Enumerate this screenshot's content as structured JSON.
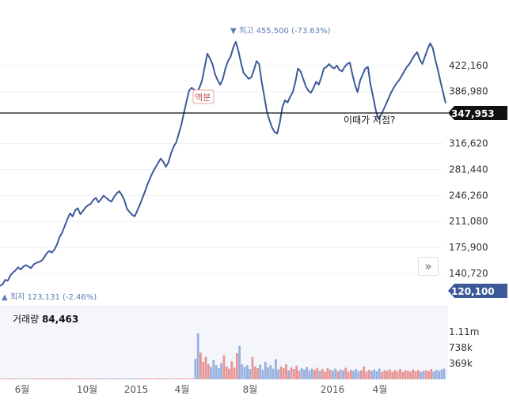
{
  "chart_data": {
    "type": "line",
    "y_ticks": [
      "422,160",
      "386,980",
      "316,620",
      "281,440",
      "246,260",
      "211,080",
      "175,900",
      "140,720"
    ],
    "x_ticks": [
      "6월",
      "10월",
      "2015",
      "4월",
      "8월",
      "2016",
      "4월"
    ],
    "ylim": [
      113000,
      470000
    ],
    "series": [
      {
        "values": [
          124000,
          126000,
          132000,
          131000,
          138000,
          142000,
          145000,
          149000,
          146000,
          150000,
          152000,
          150000,
          148000,
          153000,
          155000,
          156000,
          158000,
          162000,
          168000,
          171000,
          169000,
          173000,
          180000,
          190000,
          196000,
          205000,
          214000,
          222000,
          218000,
          226000,
          229000,
          221000,
          225000,
          230000,
          233000,
          235000,
          240000,
          243000,
          237000,
          241000,
          246000,
          243000,
          240000,
          238000,
          244000,
          249000,
          252000,
          247000,
          240000,
          228000,
          224000,
          220000,
          218000,
          226000,
          234000,
          243000,
          252000,
          262000,
          270000,
          278000,
          284000,
          290000,
          296000,
          292000,
          285000,
          291000,
          303000,
          312000,
          318000,
          330000,
          342000,
          358000,
          374000,
          388000,
          392000,
          389000,
          386000,
          392000,
          402000,
          420000,
          438000,
          432000,
          424000,
          410000,
          402000,
          396000,
          404000,
          418000,
          428000,
          434000,
          446000,
          454000,
          442000,
          426000,
          412000,
          408000,
          404000,
          406000,
          416000,
          428000,
          424000,
          400000,
          380000,
          360000,
          348000,
          338000,
          332000,
          330000,
          345000,
          366000,
          375000,
          372000,
          380000,
          386000,
          400000,
          418000,
          414000,
          404000,
          394000,
          388000,
          385000,
          392000,
          400000,
          396000,
          406000,
          418000,
          420000,
          424000,
          420000,
          418000,
          422000,
          416000,
          414000,
          420000,
          424000,
          426000,
          410000,
          396000,
          386000,
          402000,
          410000,
          418000,
          420000,
          396000,
          380000,
          362000,
          350000,
          355000,
          362000,
          370000,
          378000,
          386000,
          392000,
          398000,
          402000,
          408000,
          414000,
          420000,
          424000,
          430000,
          436000,
          440000,
          430000,
          424000,
          434000,
          444000,
          452000,
          446000,
          430000,
          416000,
          400000,
          386000,
          371000
        ],
        "min_value": 123131,
        "max_value": 455500
      }
    ],
    "current_price": "347,953",
    "last_price": "120,100",
    "annotations": {
      "max": "최고 455,500 (-73.63%)",
      "min": "최저 123,131 (-2.46%)",
      "note": "이때가 저점?",
      "split": "액분"
    },
    "volume": {
      "title": "거래량",
      "value": "84,463",
      "ticks": [
        "1.11m",
        "738k",
        "369k"
      ],
      "ymax": 1200000,
      "values": [
        18000,
        15000,
        20000,
        17000,
        16000,
        22000,
        19000,
        15000,
        18000,
        21000,
        17000,
        16000,
        19000,
        20000,
        18000,
        17000,
        22000,
        16000,
        19000,
        18000,
        17000,
        21000,
        20000,
        18000,
        16000,
        19000,
        22000,
        18000,
        17000,
        20000,
        19000,
        16000,
        18000,
        21000,
        17000,
        19000,
        20000,
        18000,
        22000,
        17000,
        16000,
        19000,
        18000,
        20000,
        17000,
        21000,
        18000,
        19000,
        16000,
        20000,
        18000,
        17000,
        22000,
        19000,
        18000,
        16000,
        20000,
        21000,
        18000,
        17000,
        19000,
        22000,
        18000,
        20000,
        17000,
        16000,
        19000,
        18000,
        21000,
        20000,
        17000,
        19000,
        18000,
        16000,
        22000,
        480000,
        1080000,
        620000,
        410000,
        520000,
        360000,
        290000,
        450000,
        330000,
        260000,
        380000,
        560000,
        300000,
        250000,
        420000,
        270000,
        610000,
        780000,
        350000,
        290000,
        330000,
        240000,
        520000,
        300000,
        260000,
        340000,
        220000,
        410000,
        280000,
        330000,
        250000,
        470000,
        230000,
        300000,
        260000,
        350000,
        210000,
        280000,
        240000,
        320000,
        200000,
        260000,
        230000,
        290000,
        210000,
        250000,
        220000,
        270000,
        200000,
        240000,
        180000,
        260000,
        220000,
        200000,
        250000,
        190000,
        230000,
        210000,
        270000,
        180000,
        220000,
        200000,
        240000,
        190000,
        210000,
        300000,
        180000,
        220000,
        200000,
        230000,
        190000,
        250000,
        170000,
        210000,
        200000,
        230000,
        180000,
        220000,
        190000,
        240000,
        170000,
        210000,
        200000,
        180000,
        230000,
        190000,
        220000,
        170000,
        200000,
        210000,
        190000,
        240000,
        180000,
        220000,
        200000,
        230000,
        250000
      ]
    },
    "colors": {
      "line": "#3c5a99",
      "flag": "#111111",
      "last_flag": "#3c5a99",
      "volume_up": "#e58b8b",
      "volume_down": "#8ea9dc",
      "split": "#c0504d"
    }
  },
  "nav_button": "»"
}
